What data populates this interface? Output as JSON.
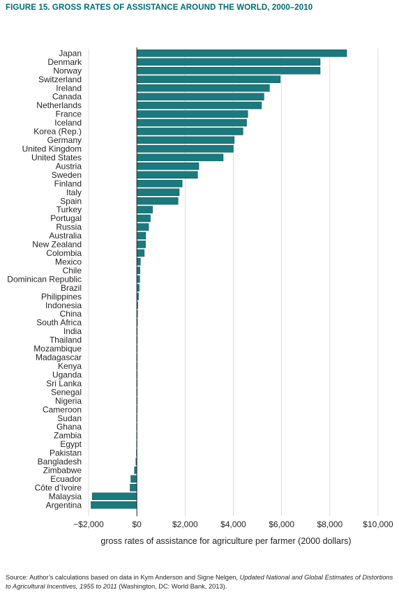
{
  "figure": {
    "title": "FIGURE 15. GROSS RATES OF ASSISTANCE AROUND THE WORLD, 2000–2010",
    "source_prefix": "Source: Author’s calculations based on data in Kym Anderson and Signe Nelgen, ",
    "source_title": "Updated National and Global Estimates of Distortions to Agricultural Incentives, 1955 to 2011",
    "source_suffix": " (Washington, DC: World Bank, 2013).",
    "colors": {
      "bar": "#1a7a7e",
      "bar_stroke": "#0c4f52",
      "title": "#006b70",
      "grid": "#d4d4d4",
      "axis": "#231f20"
    }
  },
  "chart_data": {
    "type": "bar",
    "orientation": "horizontal",
    "title": "FIGURE 15. GROSS RATES OF ASSISTANCE AROUND THE WORLD, 2000–2010",
    "xlabel": "gross rates of assistance for agriculture per farmer (2000 dollars)",
    "ylabel": "",
    "xlim": [
      -2000,
      10000
    ],
    "xticks": [
      -2000,
      0,
      2000,
      4000,
      6000,
      8000,
      10000
    ],
    "xtick_labels": [
      "−$2,000",
      "$0",
      "$2,000",
      "$4,000",
      "$6,000",
      "$8,000",
      "$10,000"
    ],
    "grid": "vertical",
    "categories": [
      "Japan",
      "Denmark",
      "Norway",
      "Switzerland",
      "Ireland",
      "Canada",
      "Netherlands",
      "France",
      "Iceland",
      "Korea (Rep.)",
      "Germany",
      "United Kingdom",
      "United States",
      "Austria",
      "Sweden",
      "Finland",
      "Italy",
      "Spain",
      "Turkey",
      "Portugal",
      "Russia",
      "Australia",
      "New Zealand",
      "Colombia",
      "Mexico",
      "Chile",
      "Dominican Republic",
      "Brazil",
      "Philippines",
      "Indonesia",
      "China",
      "South Africa",
      "India",
      "Thailand",
      "Mozambique",
      "Madagascar",
      "Kenya",
      "Uganda",
      "Sri Lanka",
      "Senegal",
      "Nigeria",
      "Cameroon",
      "Sudan",
      "Ghana",
      "Zambia",
      "Egypt",
      "Pakistan",
      "Bangladesh",
      "Zimbabwe",
      "Ecuador",
      "Côte d’Ivoire",
      "Malaysia",
      "Argentina"
    ],
    "values": [
      8700,
      7600,
      7600,
      5950,
      5500,
      5270,
      5170,
      4600,
      4550,
      4400,
      4040,
      4000,
      3580,
      2570,
      2520,
      1880,
      1760,
      1710,
      650,
      560,
      490,
      370,
      360,
      310,
      150,
      130,
      120,
      100,
      70,
      40,
      30,
      25,
      20,
      20,
      15,
      15,
      10,
      10,
      10,
      10,
      10,
      -5,
      -10,
      -10,
      -10,
      -15,
      -20,
      -40,
      -100,
      -250,
      -280,
      -1850,
      -1900
    ]
  }
}
